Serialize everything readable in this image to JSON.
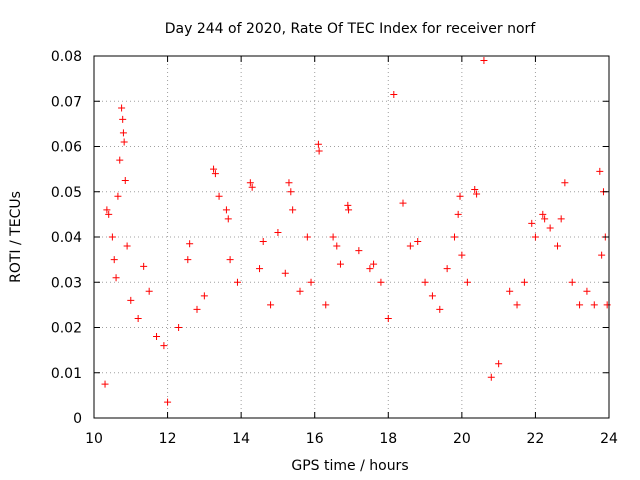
{
  "chart_data": {
    "type": "scatter",
    "title": "Day 244 of 2020, Rate Of TEC Index for receiver norf",
    "xlabel": "GPS time / hours",
    "ylabel": "ROTI / TECUs",
    "xlim": [
      10,
      24
    ],
    "ylim": [
      0,
      0.08
    ],
    "x_ticks": [
      10,
      12,
      14,
      16,
      18,
      20,
      22,
      24
    ],
    "x_tick_labels": [
      "10",
      "12",
      "14",
      "16",
      "18",
      "20",
      "22",
      "24"
    ],
    "y_ticks": [
      0,
      0.01,
      0.02,
      0.03,
      0.04,
      0.05,
      0.06,
      0.07,
      0.08
    ],
    "y_tick_labels": [
      "0",
      "0.01",
      "0.02",
      "0.03",
      "0.04",
      "0.05",
      "0.06",
      "0.07",
      "0.08"
    ],
    "grid": true,
    "marker": "+",
    "series": [
      {
        "name": "ROTI",
        "color": "#ff0000",
        "points": [
          [
            10.3,
            0.0075
          ],
          [
            10.35,
            0.046
          ],
          [
            10.4,
            0.045
          ],
          [
            10.5,
            0.04
          ],
          [
            10.55,
            0.035
          ],
          [
            10.6,
            0.031
          ],
          [
            10.65,
            0.049
          ],
          [
            10.7,
            0.057
          ],
          [
            10.75,
            0.0685
          ],
          [
            10.78,
            0.066
          ],
          [
            10.8,
            0.063
          ],
          [
            10.82,
            0.061
          ],
          [
            10.85,
            0.0525
          ],
          [
            10.9,
            0.038
          ],
          [
            11.0,
            0.026
          ],
          [
            11.2,
            0.022
          ],
          [
            11.35,
            0.0335
          ],
          [
            11.5,
            0.028
          ],
          [
            11.7,
            0.018
          ],
          [
            11.9,
            0.016
          ],
          [
            12.0,
            0.0035
          ],
          [
            12.3,
            0.02
          ],
          [
            12.55,
            0.035
          ],
          [
            12.6,
            0.0385
          ],
          [
            12.8,
            0.024
          ],
          [
            13.0,
            0.027
          ],
          [
            13.25,
            0.055
          ],
          [
            13.3,
            0.054
          ],
          [
            13.4,
            0.049
          ],
          [
            13.6,
            0.046
          ],
          [
            13.65,
            0.044
          ],
          [
            13.7,
            0.035
          ],
          [
            13.9,
            0.03
          ],
          [
            14.25,
            0.052
          ],
          [
            14.3,
            0.051
          ],
          [
            14.5,
            0.033
          ],
          [
            14.6,
            0.039
          ],
          [
            14.8,
            0.025
          ],
          [
            15.0,
            0.041
          ],
          [
            15.2,
            0.032
          ],
          [
            15.3,
            0.052
          ],
          [
            15.35,
            0.05
          ],
          [
            15.4,
            0.046
          ],
          [
            15.6,
            0.028
          ],
          [
            15.8,
            0.04
          ],
          [
            15.9,
            0.03
          ],
          [
            16.1,
            0.0605
          ],
          [
            16.12,
            0.059
          ],
          [
            16.3,
            0.025
          ],
          [
            16.5,
            0.04
          ],
          [
            16.6,
            0.038
          ],
          [
            16.7,
            0.034
          ],
          [
            16.9,
            0.047
          ],
          [
            16.92,
            0.046
          ],
          [
            17.2,
            0.037
          ],
          [
            17.5,
            0.033
          ],
          [
            17.6,
            0.034
          ],
          [
            17.8,
            0.03
          ],
          [
            18.0,
            0.022
          ],
          [
            18.15,
            0.0715
          ],
          [
            18.4,
            0.0475
          ],
          [
            18.6,
            0.038
          ],
          [
            18.8,
            0.039
          ],
          [
            19.0,
            0.03
          ],
          [
            19.2,
            0.027
          ],
          [
            19.4,
            0.024
          ],
          [
            19.6,
            0.033
          ],
          [
            19.8,
            0.04
          ],
          [
            19.9,
            0.045
          ],
          [
            19.95,
            0.049
          ],
          [
            20.0,
            0.036
          ],
          [
            20.15,
            0.03
          ],
          [
            20.35,
            0.0505
          ],
          [
            20.4,
            0.0495
          ],
          [
            20.6,
            0.079
          ],
          [
            20.8,
            0.009
          ],
          [
            21.0,
            0.012
          ],
          [
            21.3,
            0.028
          ],
          [
            21.5,
            0.025
          ],
          [
            21.7,
            0.03
          ],
          [
            21.9,
            0.043
          ],
          [
            22.0,
            0.04
          ],
          [
            22.2,
            0.045
          ],
          [
            22.25,
            0.044
          ],
          [
            22.4,
            0.042
          ],
          [
            22.6,
            0.038
          ],
          [
            22.7,
            0.044
          ],
          [
            22.8,
            0.052
          ],
          [
            23.0,
            0.03
          ],
          [
            23.2,
            0.025
          ],
          [
            23.4,
            0.028
          ],
          [
            23.6,
            0.025
          ],
          [
            23.75,
            0.0545
          ],
          [
            23.8,
            0.036
          ],
          [
            23.85,
            0.05
          ],
          [
            23.9,
            0.04
          ],
          [
            23.95,
            0.025
          ]
        ]
      }
    ]
  }
}
